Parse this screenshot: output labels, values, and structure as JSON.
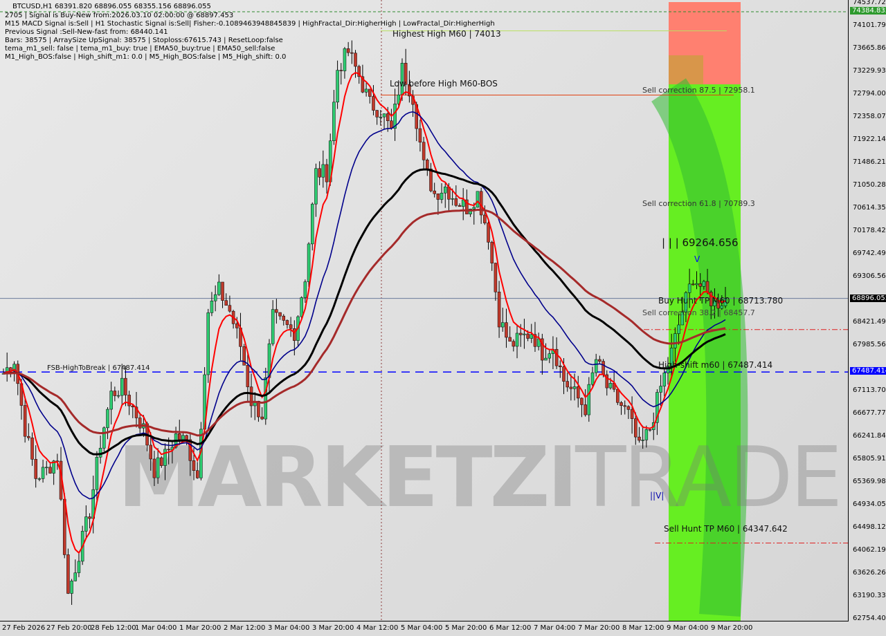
{
  "header": {
    "symbol_line": "BTCUSD,H1  68391.820 68896.055 68355.156 68896.055",
    "info_lines": [
      "2705 | Signal is Buy-New from:2026.03.10 02:00:00 @ 68897.453",
      "M15 MACD Signal is:Sell | H1 Stochastic Signal is:Sell| Fisher:-0.1089463948845839 | HighFractal_Dir:HigherHigh | LowFractal_Dir:HigherHigh",
      "Previous Signal :Sell-New-fast from: 68440.141",
      "Bars: 38575 | ArraySize UpSignal: 38575 | Stoploss:67615.743 | ResetLoop:false",
      "tema_m1_sell: false | tema_m1_buy: true | EMA50_buy:true | EMA50_sell:false",
      "M1_High_BOS:false | High_shift_m1: 0.0 | M5_High_BOS:false | M5_High_shift: 0.0"
    ]
  },
  "annotations": {
    "highest_high": "Highest High    M60 | 74013",
    "low_before_high": "Low before High    M60-BOS",
    "sell_correction_875": "Sell correction 87.5 | 72958.1",
    "sell_correction_618": "Sell correction 61.8 | 70789.3",
    "level_69264": "| | | 69264.656",
    "buy_hunt": "Buy Hunt TP M60 | 68713.780",
    "sell_correction_382": "Sell correction 38.2 | 68457.7",
    "high_shift": "High-shift m60 | 67487.414",
    "fsb": "FSB-HighToBreak | 67487.414",
    "sell_hunt": "Sell Hunt TP M60 | 64347.642",
    "v_top": "V",
    "v_bottom": "||V|"
  },
  "watermark": {
    "part1": "MARKETZI",
    "part2": "TRADE"
  },
  "price_badges": {
    "top": "74384.833",
    "current": "68896.055",
    "level": "67487.414"
  },
  "colors": {
    "bull": "#2ecc71",
    "bear": "#c0392b",
    "zone_green": "#66ee22",
    "zone_red": "#ff8070",
    "fast_ma": "#ff0000",
    "mid_ma": "#00008b",
    "slow_ma": "#000000",
    "long_ma": "#a52a2a",
    "level_blue": "#0000ff"
  },
  "chart_data": {
    "type": "candlestick",
    "symbol": "BTCUSD",
    "timeframe": "H1",
    "ylim": [
      62754.4,
      74537.72
    ],
    "y_ticks": [
      "74537.720",
      "74101.790",
      "73665.860",
      "73229.930",
      "72794.000",
      "72358.070",
      "71922.140",
      "71486.210",
      "71050.280",
      "70614.350",
      "70178.420",
      "69742.490",
      "69306.560",
      "68421.490",
      "67985.560",
      "67113.700",
      "66677.770",
      "66241.840",
      "65805.910",
      "65369.980",
      "64934.050",
      "64498.120",
      "64062.190",
      "63626.260",
      "63190.330",
      "62754.400"
    ],
    "x_ticks": [
      "27 Feb 2026",
      "27 Feb 20:00",
      "28 Feb 12:00",
      "1 Mar 04:00",
      "1 Mar 20:00",
      "2 Mar 12:00",
      "3 Mar 04:00",
      "3 Mar 20:00",
      "4 Mar 12:00",
      "5 Mar 04:00",
      "5 Mar 20:00",
      "6 Mar 12:00",
      "7 Mar 04:00",
      "7 Mar 20:00",
      "8 Mar 12:00",
      "9 Mar 04:00",
      "9 Mar 20:00"
    ],
    "closes": [
      67462,
      67727,
      66404,
      65478,
      65611,
      65875,
      63230,
      64024,
      64817,
      66140,
      67065,
      67198,
      66801,
      66404,
      65611,
      65875,
      66272,
      66140,
      65478,
      68652,
      69049,
      68652,
      67991,
      66933,
      66669,
      68520,
      68388,
      68255,
      69313,
      71297,
      71297,
      73281,
      73612,
      73149,
      72620,
      72488,
      72091,
      73281,
      72752,
      71429,
      70900,
      71033,
      70768,
      70636,
      70900,
      70107,
      68520,
      67991,
      68123,
      68255,
      67859,
      67991,
      67330,
      67065,
      66801,
      67727,
      67198,
      66933,
      66669,
      66008,
      66404,
      67198,
      67859,
      68652,
      69313,
      69049,
      68784,
      68896
    ],
    "levels": [
      {
        "name": "current",
        "value": 68896.055
      },
      {
        "name": "FSB-HighToBreak",
        "value": 67487.414
      },
      {
        "name": "Highest High",
        "value": 74013
      },
      {
        "name": "Sell correction 87.5",
        "value": 72958.1
      },
      {
        "name": "Buy Hunt TP M60",
        "value": 68713.78
      },
      {
        "name": "Sell Hunt TP M60",
        "value": 64347.642
      }
    ]
  }
}
